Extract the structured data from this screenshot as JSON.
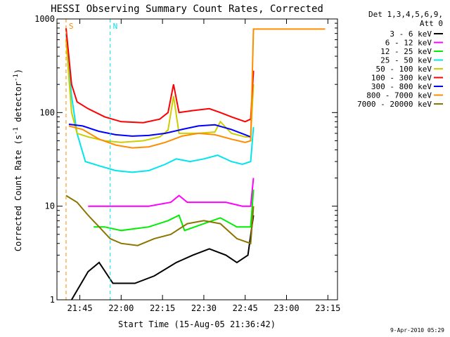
{
  "chart_data": {
    "type": "line",
    "title": "HESSI Observing Summary Count Rates, Corrected",
    "xlabel": "Start Time (15-Aug-05 21:36:42)",
    "ylabel_main": "Corrected Count Rate (s",
    "ylabel_sup1": "-1",
    "ylabel_mid": " detector",
    "ylabel_sup2": "-1",
    "ylabel_end": ")",
    "yscale": "log",
    "ylim": [
      1,
      1000
    ],
    "xlim": [
      "21:36:42",
      "23:18:30"
    ],
    "x_ticks": [
      "21:45",
      "22:00",
      "22:15",
      "22:30",
      "22:45",
      "23:00",
      "23:15"
    ],
    "y_ticks": [
      "1",
      "10",
      "100",
      "1000"
    ],
    "legend_header": [
      "Det 1,3,4,5,6,9,",
      "Att 0"
    ],
    "legend_position": "right",
    "timestamp": "9-Apr-2010 05:29",
    "flags": [
      {
        "label": "S",
        "time": "21:40:00",
        "color": "#ff8c00"
      },
      {
        "label": "N",
        "time": "21:56:00",
        "color": "#00e5ee"
      }
    ],
    "series": [
      {
        "name": "3 - 6 keV",
        "color": "#000000",
        "points": [
          [
            "21:42",
            "1"
          ],
          [
            "21:48",
            "2"
          ],
          [
            "21:52",
            "2.5"
          ],
          [
            "21:57",
            "1.5"
          ],
          [
            "22:05",
            "1.5"
          ],
          [
            "22:12",
            "1.8"
          ],
          [
            "22:20",
            "2.5"
          ],
          [
            "22:26",
            "3"
          ],
          [
            "22:32",
            "3.5"
          ],
          [
            "22:38",
            "3"
          ],
          [
            "22:42",
            "2.5"
          ],
          [
            "22:46",
            "3"
          ],
          [
            "22:48",
            "8"
          ]
        ]
      },
      {
        "name": "6 - 12 keV",
        "color": "#ff00ff",
        "points": [
          [
            "21:48",
            "10"
          ],
          [
            "21:52",
            "10"
          ],
          [
            "22:00",
            "10"
          ],
          [
            "22:10",
            "10"
          ],
          [
            "22:18",
            "11"
          ],
          [
            "22:21",
            "13"
          ],
          [
            "22:24",
            "11"
          ],
          [
            "22:30",
            "11"
          ],
          [
            "22:38",
            "11"
          ],
          [
            "22:44",
            "10"
          ],
          [
            "22:47",
            "10"
          ],
          [
            "22:48",
            "20"
          ]
        ]
      },
      {
        "name": "12 - 25 keV",
        "color": "#00ee00",
        "points": [
          [
            "21:50",
            "6"
          ],
          [
            "21:54",
            "6"
          ],
          [
            "22:00",
            "5.5"
          ],
          [
            "22:10",
            "6"
          ],
          [
            "22:17",
            "7"
          ],
          [
            "22:21",
            "8"
          ],
          [
            "22:23",
            "5.5"
          ],
          [
            "22:30",
            "6.5"
          ],
          [
            "22:36",
            "7.5"
          ],
          [
            "22:42",
            "6"
          ],
          [
            "22:47",
            "6"
          ],
          [
            "22:48",
            "15"
          ]
        ]
      },
      {
        "name": "25 - 50 keV",
        "color": "#00e5ee",
        "points": [
          [
            "21:40",
            "700"
          ],
          [
            "21:42",
            "150"
          ],
          [
            "21:44",
            "60"
          ],
          [
            "21:47",
            "30"
          ],
          [
            "21:52",
            "27"
          ],
          [
            "21:58",
            "24"
          ],
          [
            "22:04",
            "23"
          ],
          [
            "22:10",
            "24"
          ],
          [
            "22:16",
            "28"
          ],
          [
            "22:20",
            "32"
          ],
          [
            "22:25",
            "30"
          ],
          [
            "22:30",
            "32"
          ],
          [
            "22:35",
            "35"
          ],
          [
            "22:40",
            "30"
          ],
          [
            "22:44",
            "28"
          ],
          [
            "22:47",
            "30"
          ],
          [
            "22:48",
            "70"
          ]
        ]
      },
      {
        "name": "50 - 100 keV",
        "color": "#cdcd00",
        "points": [
          [
            "21:40",
            "600"
          ],
          [
            "21:42",
            "100"
          ],
          [
            "21:44",
            "60"
          ],
          [
            "21:48",
            "55"
          ],
          [
            "21:54",
            "50"
          ],
          [
            "22:00",
            "48"
          ],
          [
            "22:08",
            "50"
          ],
          [
            "22:14",
            "55"
          ],
          [
            "22:17",
            "65"
          ],
          [
            "22:19",
            "150"
          ],
          [
            "22:21",
            "60"
          ],
          [
            "22:28",
            "60"
          ],
          [
            "22:34",
            "62"
          ],
          [
            "22:36",
            "80"
          ],
          [
            "22:40",
            "60"
          ],
          [
            "22:45",
            "55"
          ],
          [
            "22:47",
            "55"
          ],
          [
            "22:48",
            "200"
          ]
        ]
      },
      {
        "name": "100 - 300 keV",
        "color": "#ff0000",
        "points": [
          [
            "21:40",
            "800"
          ],
          [
            "21:42",
            "200"
          ],
          [
            "21:44",
            "130"
          ],
          [
            "21:48",
            "110"
          ],
          [
            "21:54",
            "90"
          ],
          [
            "22:00",
            "80"
          ],
          [
            "22:08",
            "78"
          ],
          [
            "22:14",
            "85"
          ],
          [
            "22:17",
            "100"
          ],
          [
            "22:19",
            "200"
          ],
          [
            "22:21",
            "100"
          ],
          [
            "22:26",
            "105"
          ],
          [
            "22:32",
            "110"
          ],
          [
            "22:36",
            "100"
          ],
          [
            "22:40",
            "90"
          ],
          [
            "22:45",
            "80"
          ],
          [
            "22:47",
            "85"
          ],
          [
            "22:48",
            "280"
          ]
        ]
      },
      {
        "name": "300 - 800 keV",
        "color": "#0000ff",
        "points": [
          [
            "21:41",
            "75"
          ],
          [
            "21:46",
            "72"
          ],
          [
            "21:52",
            "63"
          ],
          [
            "21:58",
            "58"
          ],
          [
            "22:04",
            "56"
          ],
          [
            "22:10",
            "57"
          ],
          [
            "22:16",
            "60"
          ],
          [
            "22:22",
            "66"
          ],
          [
            "22:28",
            "72"
          ],
          [
            "22:34",
            "74"
          ],
          [
            "22:40",
            "66"
          ],
          [
            "22:45",
            "58"
          ],
          [
            "22:47",
            "55"
          ]
        ]
      },
      {
        "name": "800 - 7000 keV",
        "color": "#ff8c00",
        "points": [
          [
            "21:41",
            "72"
          ],
          [
            "21:46",
            "66"
          ],
          [
            "21:52",
            "52"
          ],
          [
            "21:58",
            "45"
          ],
          [
            "22:04",
            "42"
          ],
          [
            "22:10",
            "43"
          ],
          [
            "22:16",
            "48"
          ],
          [
            "22:22",
            "56"
          ],
          [
            "22:28",
            "60"
          ],
          [
            "22:34",
            "58"
          ],
          [
            "22:40",
            "52"
          ],
          [
            "22:45",
            "48"
          ],
          [
            "22:47",
            "50"
          ],
          [
            "22:48",
            "780"
          ],
          [
            "23:14",
            "780"
          ]
        ]
      },
      {
        "name": "7000 - 20000 keV",
        "color": "#8b7500",
        "points": [
          [
            "21:40",
            "13"
          ],
          [
            "21:44",
            "11"
          ],
          [
            "21:48",
            "8"
          ],
          [
            "21:52",
            "6"
          ],
          [
            "21:56",
            "4.5"
          ],
          [
            "22:00",
            "4"
          ],
          [
            "22:06",
            "3.8"
          ],
          [
            "22:12",
            "4.5"
          ],
          [
            "22:18",
            "5"
          ],
          [
            "22:24",
            "6.5"
          ],
          [
            "22:30",
            "7"
          ],
          [
            "22:36",
            "6.5"
          ],
          [
            "22:42",
            "4.5"
          ],
          [
            "22:47",
            "4"
          ],
          [
            "22:48",
            "10"
          ]
        ]
      }
    ]
  }
}
